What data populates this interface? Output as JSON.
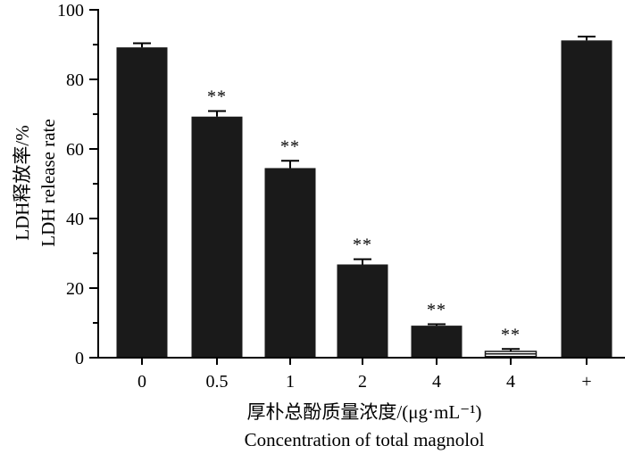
{
  "chart_data": {
    "type": "bar",
    "categories": [
      "0",
      "0.5",
      "1",
      "2",
      "4",
      "4",
      "+"
    ],
    "values": [
      89.2,
      69.3,
      54.5,
      26.8,
      9.2,
      1.8,
      91.2
    ],
    "errors": [
      1.2,
      1.6,
      2.1,
      1.5,
      0.4,
      0.7,
      1.1
    ],
    "hatched": [
      false,
      false,
      false,
      false,
      false,
      true,
      false
    ],
    "significance": [
      "",
      "**",
      "**",
      "**",
      "**",
      "**",
      ""
    ],
    "ylim": [
      0,
      100
    ],
    "yticks": [
      "0",
      "20",
      "40",
      "60",
      "80",
      "100"
    ],
    "ylabel": [
      "LDH释放率/%",
      "LDH release rate"
    ],
    "xlabel": [
      "厚朴总酚质量浓度/(μg·mL⁻¹)",
      "Concentration of total magnolol"
    ],
    "bar_color": "#1a1a1a",
    "grid": false,
    "legend": "none"
  }
}
